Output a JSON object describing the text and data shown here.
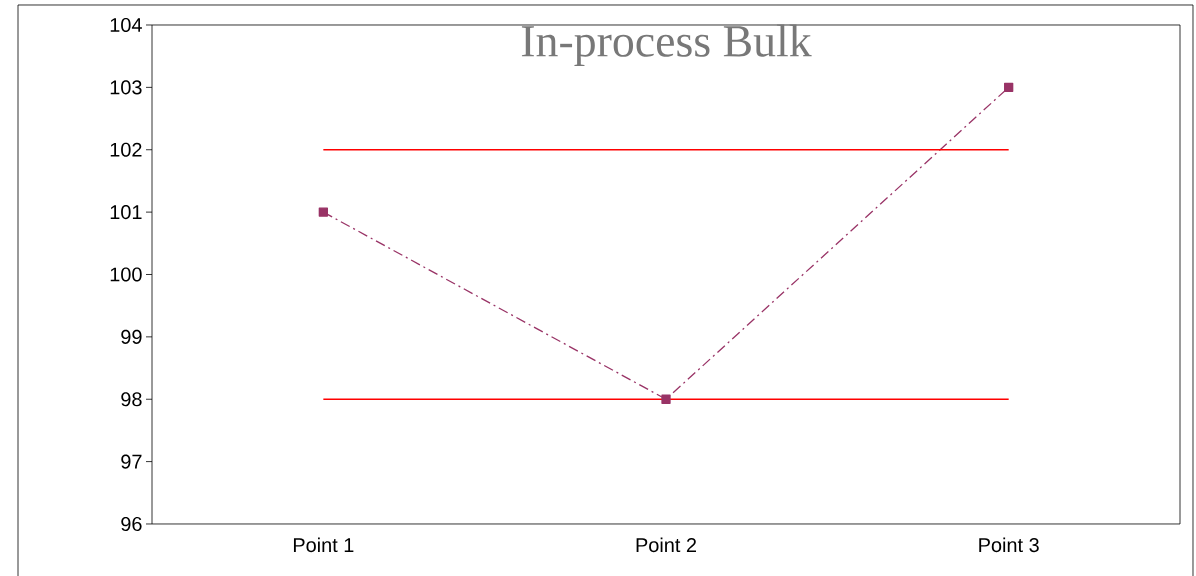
{
  "chart_data": {
    "type": "line",
    "title": "In-process Bulk",
    "categories": [
      "Point 1",
      "Point 2",
      "Point 3"
    ],
    "series": [
      {
        "values": [
          101,
          98,
          103
        ],
        "color": "#993366",
        "marker": "square",
        "line_style": "dashed"
      },
      {
        "values": [
          102,
          102,
          102
        ],
        "color": "#ff0000",
        "marker": "none",
        "line_style": "solid"
      },
      {
        "values": [
          98,
          98,
          98
        ],
        "color": "#ff0000",
        "marker": "none",
        "line_style": "solid"
      }
    ],
    "ylim": [
      96,
      104
    ],
    "yticks": [
      96,
      97,
      98,
      99,
      100,
      101,
      102,
      103,
      104
    ]
  }
}
